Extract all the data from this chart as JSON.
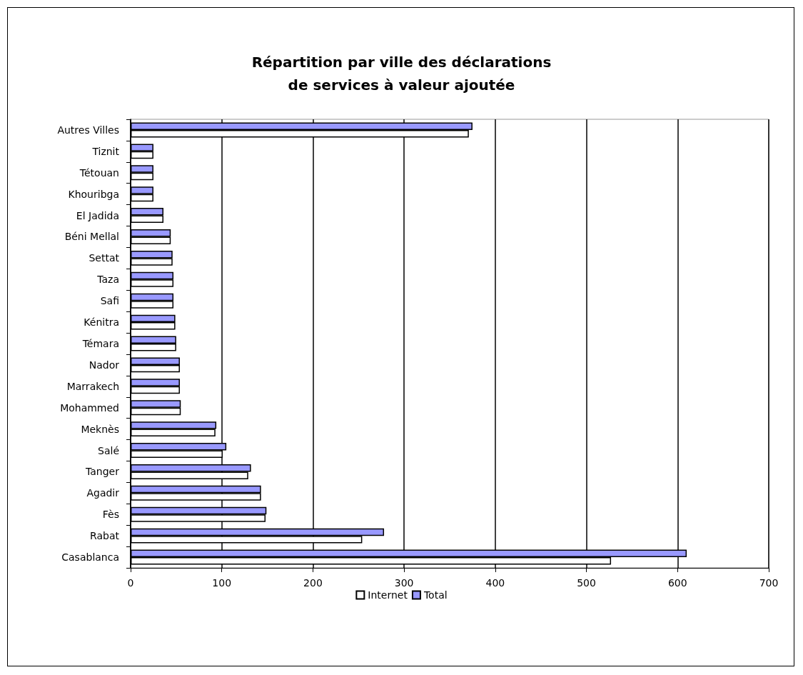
{
  "chart_data": {
    "type": "bar",
    "orientation": "horizontal",
    "title": "Répartition par ville des déclarations\nde services à valeur ajoutée",
    "categories": [
      "Autres Villes",
      "Tiznit",
      "Tétouan",
      "Khouribga",
      "El Jadida",
      "Béni Mellal",
      "Settat",
      "Taza",
      "Safi",
      "Kénitra",
      "Témara",
      "Nador",
      "Marrakech",
      "Mohammed",
      "Meknès",
      "Salé",
      "Tanger",
      "Agadir",
      "Fès",
      "Rabat",
      "Casablanca"
    ],
    "series": [
      {
        "name": "Internet",
        "color": "#ffffff",
        "values": [
          371,
          25,
          25,
          25,
          36,
          44,
          46,
          47,
          47,
          49,
          50,
          54,
          54,
          55,
          93,
          101,
          129,
          143,
          148,
          254,
          527
        ]
      },
      {
        "name": "Total",
        "color": "#9999ff",
        "values": [
          375,
          25,
          25,
          25,
          36,
          44,
          46,
          47,
          47,
          49,
          50,
          54,
          54,
          55,
          94,
          105,
          132,
          143,
          149,
          278,
          610
        ]
      }
    ],
    "xlim": [
      0,
      700
    ],
    "xticks": [
      0,
      100,
      200,
      300,
      400,
      500,
      600,
      700
    ],
    "grid": "x",
    "legend": "bottom"
  }
}
